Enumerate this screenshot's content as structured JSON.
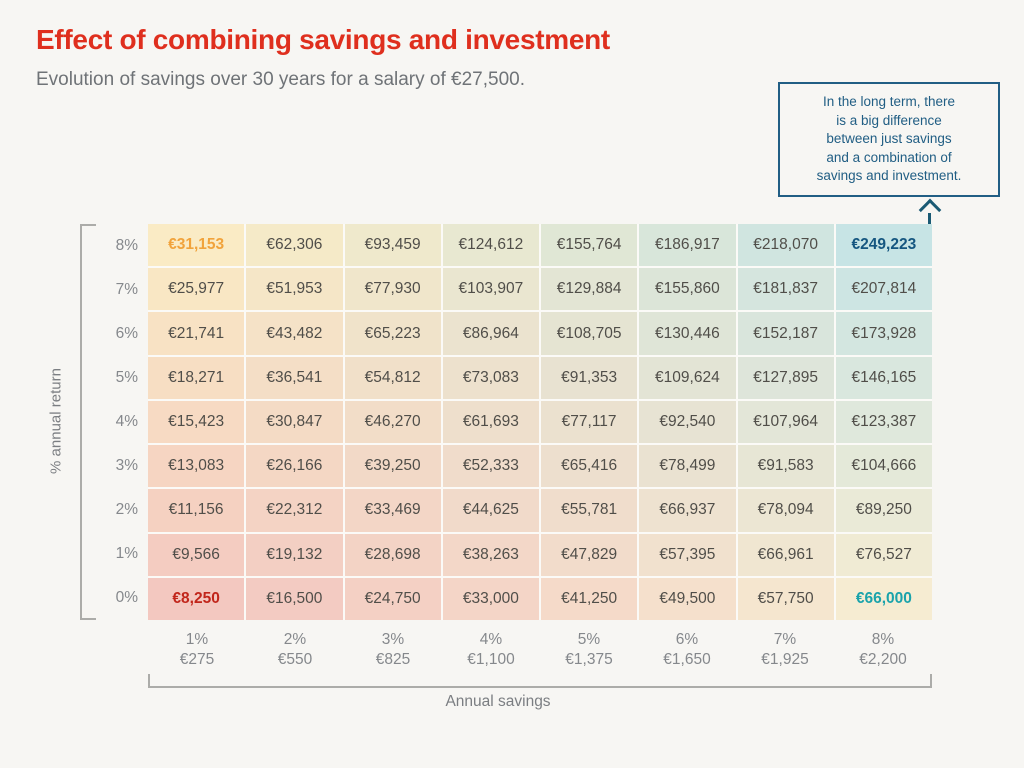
{
  "header": {
    "title": "Effect of combining savings and investment",
    "subtitle": "Evolution of savings over 30 years for a salary of €27,500.",
    "title_color": "#DF2F1E",
    "subtitle_color": "#6F7377"
  },
  "callout": {
    "lines": [
      "In the long term, there",
      "is a big difference",
      "between just savings",
      "and a combination of",
      "savings and investment."
    ],
    "color": "#215E84"
  },
  "arrow": {
    "color": "#1A5A74",
    "direction": "up"
  },
  "axes": {
    "y_title": "% annual return",
    "x_title": "Annual savings"
  },
  "heatmap_colors": {
    "top_left": "#FAEBC5",
    "top_right": "#C7E4E5",
    "bottom_left": "#F3C8C0",
    "bottom_right": "#F6ECD2",
    "cell_text": "#504E49",
    "label_text": "#85888C"
  },
  "highlights": [
    {
      "row": 0,
      "col": 0,
      "color": "#F1A33C",
      "value": "€31,153"
    },
    {
      "row": 0,
      "col": 7,
      "color": "#155680",
      "value": "€249,223"
    },
    {
      "row": 8,
      "col": 0,
      "color": "#C1261B",
      "value": "€8,250"
    },
    {
      "row": 8,
      "col": 7,
      "color": "#1AA3AB",
      "value": "€66,000"
    }
  ],
  "chart_data": {
    "type": "heatmap",
    "title": "Effect of combining savings and investment",
    "subtitle": "Evolution of savings over 30 years for a salary of €27,500.",
    "xlabel": "Annual savings",
    "ylabel": "% annual return",
    "annotation": "In the long term, there is a big difference between just savings and a combination of savings and investment.",
    "y_categories": [
      "8%",
      "7%",
      "6%",
      "5%",
      "4%",
      "3%",
      "2%",
      "1%",
      "0%"
    ],
    "x_categories": [
      {
        "pct": "1%",
        "amount": "€275"
      },
      {
        "pct": "2%",
        "amount": "€550"
      },
      {
        "pct": "3%",
        "amount": "€825"
      },
      {
        "pct": "4%",
        "amount": "€1,100"
      },
      {
        "pct": "5%",
        "amount": "€1,375"
      },
      {
        "pct": "6%",
        "amount": "€1,650"
      },
      {
        "pct": "7%",
        "amount": "€1,925"
      },
      {
        "pct": "8%",
        "amount": "€2,200"
      }
    ],
    "values": [
      [
        31153,
        62306,
        93459,
        124612,
        155764,
        186917,
        218070,
        249223
      ],
      [
        25977,
        51953,
        77930,
        103907,
        129884,
        155860,
        181837,
        207814
      ],
      [
        21741,
        43482,
        65223,
        86964,
        108705,
        130446,
        152187,
        173928
      ],
      [
        18271,
        36541,
        54812,
        73083,
        91353,
        109624,
        127895,
        146165
      ],
      [
        15423,
        30847,
        46270,
        61693,
        77117,
        92540,
        107964,
        123387
      ],
      [
        13083,
        26166,
        39250,
        52333,
        65416,
        78499,
        91583,
        104666
      ],
      [
        11156,
        22312,
        33469,
        44625,
        55781,
        66937,
        78094,
        89250
      ],
      [
        9566,
        19132,
        28698,
        38263,
        47829,
        57395,
        66961,
        76527
      ],
      [
        8250,
        16500,
        24750,
        33000,
        41250,
        49500,
        57750,
        66000
      ]
    ],
    "display": [
      [
        "€31,153",
        "€62,306",
        "€93,459",
        "€124,612",
        "€155,764",
        "€186,917",
        "€218,070",
        "€249,223"
      ],
      [
        "€25,977",
        "€51,953",
        "€77,930",
        "€103,907",
        "€129,884",
        "€155,860",
        "€181,837",
        "€207,814"
      ],
      [
        "€21,741",
        "€43,482",
        "€65,223",
        "€86,964",
        "€108,705",
        "€130,446",
        "€152,187",
        "€173,928"
      ],
      [
        "€18,271",
        "€36,541",
        "€54,812",
        "€73,083",
        "€91,353",
        "€109,624",
        "€127,895",
        "€146,165"
      ],
      [
        "€15,423",
        "€30,847",
        "€46,270",
        "€61,693",
        "€77,117",
        "€92,540",
        "€107,964",
        "€123,387"
      ],
      [
        "€13,083",
        "€26,166",
        "€39,250",
        "€52,333",
        "€65,416",
        "€78,499",
        "€91,583",
        "€104,666"
      ],
      [
        "€11,156",
        "€22,312",
        "€33,469",
        "€44,625",
        "€55,781",
        "€66,937",
        "€78,094",
        "€89,250"
      ],
      [
        "€9,566",
        "€19,132",
        "€28,698",
        "€38,263",
        "€47,829",
        "€57,395",
        "€66,961",
        "€76,527"
      ],
      [
        "€8,250",
        "€16,500",
        "€24,750",
        "€33,000",
        "€41,250",
        "€49,500",
        "€57,750",
        "€66,000"
      ]
    ]
  }
}
